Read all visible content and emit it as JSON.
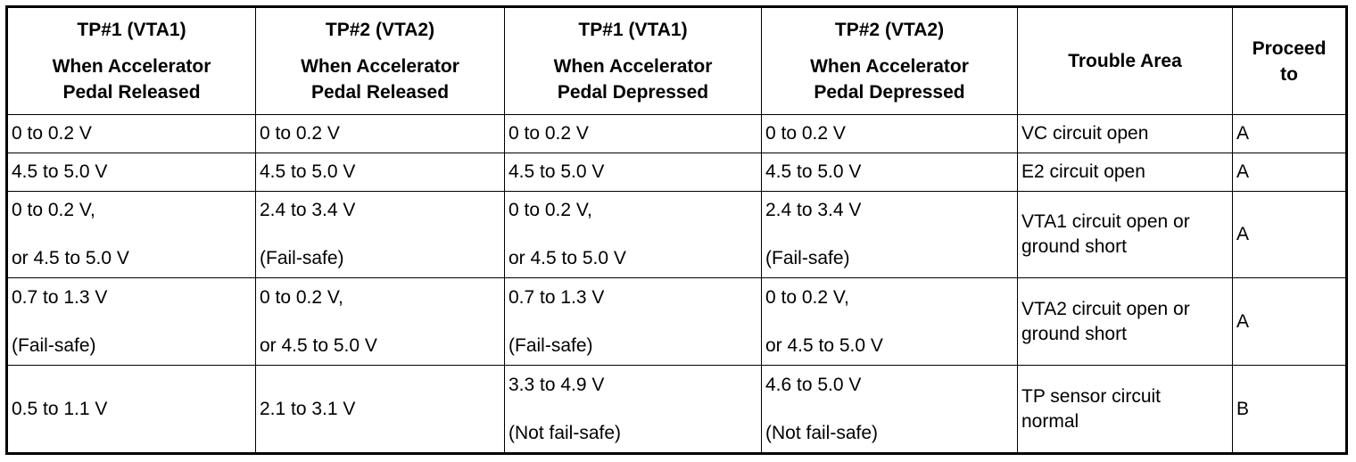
{
  "headers": [
    {
      "title": "TP#1 (VTA1)",
      "lines": [
        "When Accelerator",
        "Pedal Released"
      ]
    },
    {
      "title": "TP#2 (VTA2)",
      "lines": [
        "When Accelerator",
        "Pedal Released"
      ]
    },
    {
      "title": "TP#1 (VTA1)",
      "lines": [
        "When Accelerator",
        "Pedal Depressed"
      ]
    },
    {
      "title": "TP#2 (VTA2)",
      "lines": [
        "When Accelerator",
        "Pedal Depressed"
      ]
    },
    {
      "lines": [
        "Trouble Area"
      ]
    },
    {
      "lines": [
        "Proceed",
        "to"
      ]
    }
  ],
  "rows": [
    {
      "cells": [
        [
          "0 to 0.2 V"
        ],
        [
          "0 to 0.2 V"
        ],
        [
          "0 to 0.2 V"
        ],
        [
          "0 to 0.2 V"
        ],
        [
          "VC circuit open"
        ],
        [
          "A"
        ]
      ]
    },
    {
      "cells": [
        [
          "4.5 to 5.0 V"
        ],
        [
          "4.5 to 5.0 V"
        ],
        [
          "4.5 to 5.0 V"
        ],
        [
          "4.5 to 5.0 V"
        ],
        [
          "E2 circuit open"
        ],
        [
          "A"
        ]
      ]
    },
    {
      "cells": [
        [
          "0 to 0.2 V,",
          "or 4.5 to 5.0 V"
        ],
        [
          "2.4 to 3.4 V",
          "(Fail-safe)"
        ],
        [
          "0 to 0.2 V,",
          "or 4.5 to 5.0 V"
        ],
        [
          "2.4 to 3.4 V",
          "(Fail-safe)"
        ],
        [
          "VTA1 circuit open or",
          "ground short"
        ],
        [
          "A"
        ]
      ]
    },
    {
      "cells": [
        [
          "0.7 to 1.3 V",
          "(Fail-safe)"
        ],
        [
          "0 to 0.2 V,",
          "or 4.5 to 5.0 V"
        ],
        [
          "0.7 to 1.3 V",
          "(Fail-safe)"
        ],
        [
          "0 to 0.2 V,",
          "or 4.5 to 5.0 V"
        ],
        [
          "VTA2 circuit open or",
          "ground short"
        ],
        [
          "A"
        ]
      ]
    },
    {
      "cells": [
        [
          "0.5 to 1.1 V"
        ],
        [
          "2.1 to 3.1 V"
        ],
        [
          "3.3 to 4.9 V",
          "(Not fail-safe)"
        ],
        [
          "4.6 to 5.0 V",
          "(Not fail-safe)"
        ],
        [
          "TP sensor circuit",
          "normal"
        ],
        [
          "B"
        ]
      ]
    }
  ]
}
